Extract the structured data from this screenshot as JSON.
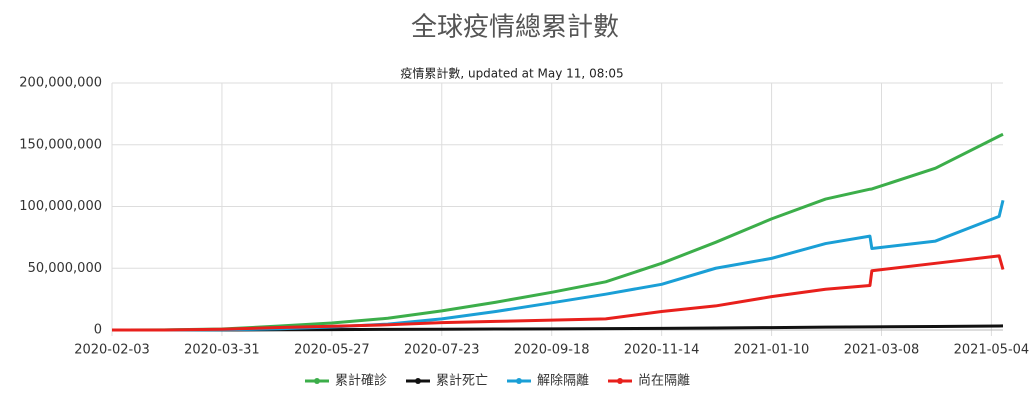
{
  "chart_data": {
    "type": "line",
    "title": "全球疫情總累計數",
    "subtitle": "疫情累計數, updated at May 11, 08:05",
    "x": [
      "2020-02-03",
      "2020-03-01",
      "2020-03-31",
      "2020-04-30",
      "2020-05-27",
      "2020-06-25",
      "2020-07-23",
      "2020-08-20",
      "2020-09-18",
      "2020-10-16",
      "2020-11-14",
      "2020-12-12",
      "2021-01-10",
      "2021-02-07",
      "2021-03-02",
      "2021-03-03",
      "2021-04-05",
      "2021-05-08",
      "2021-05-10"
    ],
    "xlim": [
      "2020-02-03",
      "2021-05-10"
    ],
    "xticks": [
      "2020-02-03",
      "2020-03-31",
      "2020-05-27",
      "2020-07-23",
      "2020-09-18",
      "2020-11-14",
      "2021-01-10",
      "2021-03-08",
      "2021-05-04"
    ],
    "ylim": [
      0,
      200000000
    ],
    "yticks": [
      {
        "value": 0,
        "label": "0"
      },
      {
        "value": 50000000,
        "label": "50,000,000"
      },
      {
        "value": 100000000,
        "label": "100,000,000"
      },
      {
        "value": 150000000,
        "label": "150,000,000"
      },
      {
        "value": 200000000,
        "label": "200,000,000"
      }
    ],
    "grid": true,
    "legend": "bottom",
    "series": [
      {
        "name": "累計確診",
        "color": "#3cae4a",
        "values": [
          20000,
          90000,
          800000,
          3200000,
          5700000,
          9500000,
          15500000,
          22500000,
          30500000,
          39000000,
          54000000,
          71000000,
          90000000,
          106000000,
          114000000,
          114200000,
          131000000,
          157000000,
          158500000
        ]
      },
      {
        "name": "累計死亡",
        "color": "#111111",
        "values": [
          400,
          3000,
          40000,
          230000,
          350000,
          480000,
          640000,
          800000,
          950000,
          1100000,
          1300000,
          1600000,
          1950000,
          2300000,
          2550000,
          2550000,
          2850000,
          3250000,
          3300000
        ]
      },
      {
        "name": "解除隔離",
        "color": "#1a9fd6",
        "values": [
          200,
          40000,
          170000,
          1000000,
          2400000,
          4800000,
          9000000,
          15000000,
          22000000,
          29000000,
          37000000,
          50000000,
          58000000,
          70000000,
          76000000,
          66000000,
          72000000,
          92000000,
          105000000
        ]
      },
      {
        "name": "尚在隔離",
        "color": "#e8201c",
        "values": [
          20000,
          50000,
          600000,
          2000000,
          3000000,
          4200000,
          6000000,
          7000000,
          8000000,
          9000000,
          15000000,
          19500000,
          27000000,
          33000000,
          36000000,
          48000000,
          54000000,
          60000000,
          49000000
        ]
      }
    ]
  }
}
